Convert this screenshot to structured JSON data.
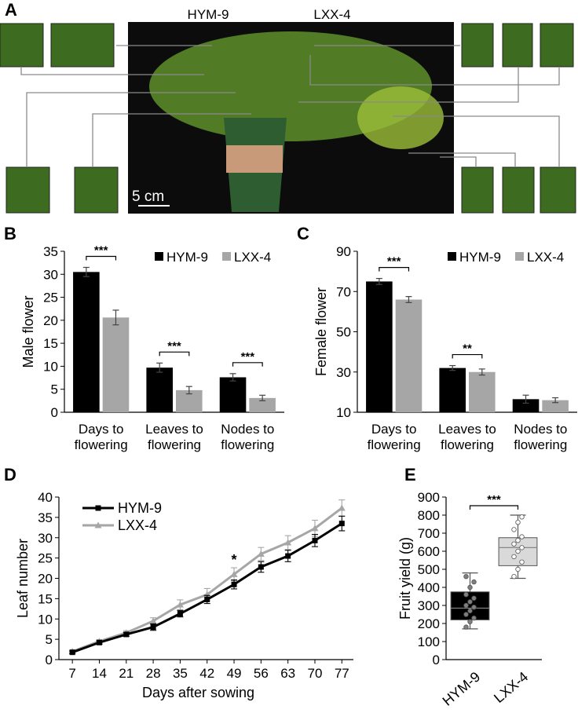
{
  "panel_a": {
    "panel_label": "A",
    "labels": [
      "HYM-9",
      "LXX-4"
    ],
    "scale_bar": "5 cm"
  },
  "chart_data": [
    {
      "type": "bar",
      "panel_label": "B",
      "ylabel": "Male flower",
      "categories": [
        "Days to flowering",
        "Leaves to flowering",
        "Nodes to flowering"
      ],
      "series": [
        {
          "name": "HYM-9",
          "color": "#000000",
          "values": [
            30.5,
            9.7,
            7.6
          ],
          "errors": [
            1.0,
            1.0,
            0.8
          ]
        },
        {
          "name": "LXX-4",
          "color": "#a6a6a6",
          "values": [
            20.6,
            4.8,
            3.1
          ],
          "errors": [
            1.6,
            0.8,
            0.6
          ]
        }
      ],
      "significance": [
        "***",
        "***",
        "***"
      ],
      "ylim": [
        0,
        35
      ],
      "yticks": [
        0,
        5,
        10,
        15,
        20,
        25,
        30,
        35
      ],
      "legend": "upper right"
    },
    {
      "type": "bar",
      "panel_label": "C",
      "ylabel": "Female flower",
      "categories": [
        "Days to flowering",
        "Leaves to flowering",
        "Nodes to flowering"
      ],
      "series": [
        {
          "name": "HYM-9",
          "color": "#000000",
          "values": [
            75,
            32,
            16.5
          ],
          "errors": [
            1.5,
            1.2,
            2
          ]
        },
        {
          "name": "LXX-4",
          "color": "#a6a6a6",
          "values": [
            66,
            30,
            16
          ],
          "errors": [
            1.5,
            1.5,
            1.2
          ]
        }
      ],
      "significance": [
        "***",
        "**",
        null
      ],
      "ylim": [
        10,
        90
      ],
      "yticks": [
        10,
        30,
        50,
        70,
        90
      ],
      "legend": "upper right"
    },
    {
      "type": "line",
      "panel_label": "D",
      "xlabel": "Days after sowing",
      "ylabel": "Leaf number",
      "x": [
        7,
        14,
        21,
        28,
        35,
        42,
        49,
        56,
        63,
        70,
        77
      ],
      "series": [
        {
          "name": "HYM-9",
          "color": "#000000",
          "marker": "square",
          "values": [
            1.8,
            4.2,
            6.2,
            8.0,
            11.3,
            14.8,
            18.5,
            22.8,
            25.5,
            29.3,
            33.5
          ],
          "errors": [
            0.3,
            0.4,
            0.5,
            0.8,
            0.8,
            1.0,
            1.1,
            1.3,
            1.4,
            1.5,
            1.8
          ]
        },
        {
          "name": "LXX-4",
          "color": "#a6a6a6",
          "marker": "triangle",
          "values": [
            2.0,
            4.5,
            6.6,
            9.5,
            13.5,
            16.0,
            21.0,
            26.0,
            28.8,
            32.3,
            37.3
          ],
          "errors": [
            0.3,
            0.4,
            0.5,
            0.8,
            1.2,
            1.5,
            1.6,
            1.6,
            1.7,
            2.0,
            2.0
          ]
        }
      ],
      "annotations": [
        {
          "x": 49,
          "text": "*"
        }
      ],
      "xlim": [
        3.5,
        80
      ],
      "xticks": [
        7,
        14,
        21,
        28,
        35,
        42,
        49,
        56,
        63,
        70,
        77
      ],
      "ylim": [
        0,
        40
      ],
      "yticks": [
        0,
        5,
        10,
        15,
        20,
        25,
        30,
        35,
        40
      ],
      "legend": "upper left"
    },
    {
      "type": "box",
      "panel_label": "E",
      "ylabel": "Fruit yield (g)",
      "categories": [
        "HYM-9",
        "LXX-4"
      ],
      "boxes": [
        {
          "min": 170,
          "q1": 220,
          "median": 285,
          "q3": 375,
          "max": 480,
          "color": "#000000",
          "point_color": "#808080",
          "points": [
            180,
            210,
            230,
            250,
            270,
            290,
            300,
            320,
            340,
            360,
            400,
            430,
            460
          ]
        },
        {
          "min": 450,
          "q1": 520,
          "median": 620,
          "q3": 675,
          "max": 800,
          "color": "#d9d9d9",
          "point_color": "#ffffff",
          "points": [
            460,
            500,
            540,
            570,
            600,
            620,
            640,
            660,
            680,
            720,
            760,
            790
          ]
        }
      ],
      "significance": "***",
      "ylim": [
        0,
        900
      ],
      "yticks": [
        0,
        100,
        200,
        300,
        400,
        500,
        600,
        700,
        800,
        900
      ]
    }
  ]
}
